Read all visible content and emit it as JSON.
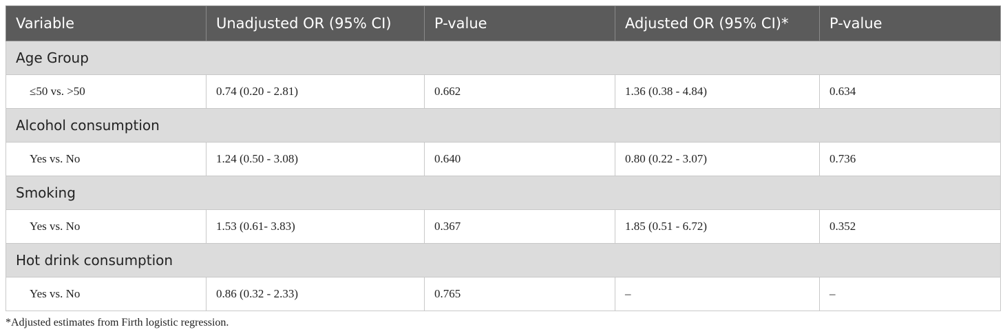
{
  "table": {
    "header": [
      "Variable",
      "Unadjusted OR (95% CI)",
      "P-value",
      "Adjusted OR (95% CI)*",
      "P-value"
    ],
    "groups": [
      {
        "label": "Age Group",
        "rows": [
          [
            "≤50 vs. >50",
            "0.74 (0.20 - 2.81)",
            "0.662",
            "1.36 (0.38 - 4.84)",
            "0.634"
          ]
        ]
      },
      {
        "label": "Alcohol consumption",
        "rows": [
          [
            "Yes vs. No",
            "1.24 (0.50 - 3.08)",
            "0.640",
            "0.80 (0.22 - 3.07)",
            "0.736"
          ]
        ]
      },
      {
        "label": "Smoking",
        "rows": [
          [
            "Yes vs. No",
            "1.53 (0.61- 3.83)",
            "0.367",
            "1.85 (0.51 - 6.72)",
            "0.352"
          ]
        ]
      },
      {
        "label": "Hot drink consumption",
        "rows": [
          [
            "Yes vs. No",
            "0.86 (0.32 - 2.33)",
            "0.765",
            "–",
            "–"
          ]
        ]
      }
    ],
    "footnote": "*Adjusted estimates from Firth logistic regression."
  }
}
